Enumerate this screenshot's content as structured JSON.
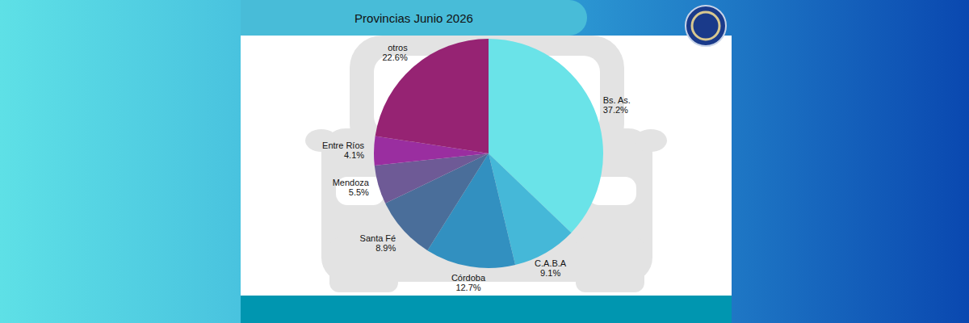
{
  "chart_data": {
    "type": "pie",
    "title": "Provincias Junio 2026",
    "categories": [
      "Bs. As.",
      "C.A.B.A",
      "Córdoba",
      "Santa Fé",
      "Mendoza",
      "Entre Ríos",
      "otros"
    ],
    "values": [
      37.2,
      9.1,
      12.7,
      8.9,
      5.5,
      4.1,
      22.6
    ],
    "value_labels": [
      "37.2%",
      "9.1%",
      "12.7%",
      "8.9%",
      "5.5%",
      "4.1%",
      "22.6%"
    ],
    "colors": [
      "#6ae3e8",
      "#45b8d8",
      "#3290c0",
      "#4a6e9a",
      "#6e5a96",
      "#9a2ea0",
      "#962373"
    ],
    "data_labels": true
  }
}
